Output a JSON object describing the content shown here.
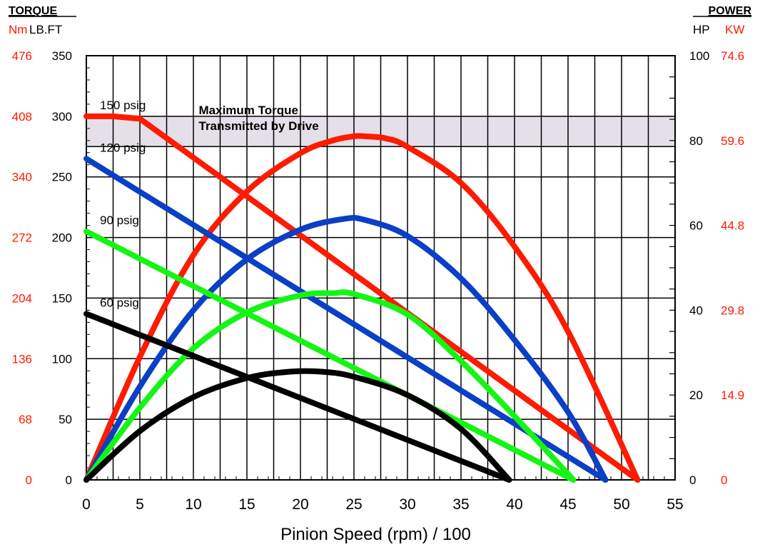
{
  "header": {
    "left_title": "TORQUE",
    "left_unit_metric": "Nm",
    "left_unit_imperial": "LB.FT",
    "right_title": "POWER",
    "right_unit_imperial": "HP",
    "right_unit_metric": "KW"
  },
  "colors": {
    "red": "#ff1a00",
    "blue": "#0a3fc6",
    "green": "#15f515",
    "black": "#000000",
    "band": "#e4dfe9",
    "axis_metric_text": "#ff1a00"
  },
  "chart_data": {
    "type": "line",
    "xlabel": "Pinion Speed (rpm) / 100",
    "xlim": [
      0,
      55
    ],
    "x_ticks": [
      0,
      5,
      10,
      15,
      20,
      25,
      30,
      35,
      40,
      45,
      50,
      55
    ],
    "x_tick_labels": [
      "0",
      "5",
      "10",
      "15",
      "20",
      "25",
      "30",
      "35",
      "40",
      "45",
      "50",
      "55"
    ],
    "torque_axis": {
      "lim": [
        0,
        350
      ],
      "ticks": [
        0,
        50,
        100,
        150,
        200,
        250,
        300,
        350
      ],
      "tick_labels": [
        "0",
        "50",
        "100",
        "150",
        "200",
        "250",
        "300",
        "350"
      ],
      "metric_tick_labels": [
        "0",
        "68",
        "136",
        "204",
        "272",
        "340",
        "408",
        "476"
      ]
    },
    "power_axis": {
      "lim": [
        0,
        100
      ],
      "ticks": [
        0,
        20,
        40,
        60,
        80,
        100
      ],
      "tick_labels": [
        "0",
        "20",
        "40",
        "60",
        "80",
        "100"
      ],
      "metric_tick_labels": [
        "0",
        "14.9",
        "29.8",
        "44.8",
        "59.6",
        "74.6"
      ]
    },
    "band": {
      "torque_range": [
        275,
        300
      ],
      "label_line1": "Maximum Torque",
      "label_line2": "Transmitted by Drive"
    },
    "series": [
      {
        "name": "150 psig",
        "color": "red",
        "torque": {
          "x": [
            0,
            2.5,
            5,
            51.5
          ],
          "y": [
            300,
            300,
            298,
            0
          ]
        },
        "power": {
          "x": [
            0,
            5,
            10,
            15,
            20,
            23,
            25,
            26,
            28,
            30,
            35,
            40,
            45,
            51.5
          ],
          "y": [
            0,
            29,
            53,
            68,
            77,
            80,
            81,
            81,
            80.5,
            78.5,
            70,
            55,
            35,
            0
          ]
        }
      },
      {
        "name": "120 psig",
        "color": "blue",
        "torque": {
          "x": [
            0,
            48.5
          ],
          "y": [
            265,
            0
          ]
        },
        "power": {
          "x": [
            0,
            5,
            10,
            15,
            20,
            24,
            26,
            30,
            35,
            40,
            45,
            48.5
          ],
          "y": [
            0,
            22,
            40,
            52,
            59,
            61.5,
            61.3,
            57.5,
            47.5,
            33,
            16,
            0
          ]
        }
      },
      {
        "name": "90 psig",
        "color": "green",
        "torque": {
          "x": [
            0,
            45.5
          ],
          "y": [
            205,
            0
          ]
        },
        "power": {
          "x": [
            0,
            5,
            10,
            15,
            20,
            23,
            25,
            30,
            35,
            40,
            45.5
          ],
          "y": [
            0,
            17,
            31,
            39.5,
            43.5,
            44,
            43.8,
            39,
            28,
            15,
            0
          ]
        }
      },
      {
        "name": "60 psig",
        "color": "black",
        "torque": {
          "x": [
            0,
            39.5
          ],
          "y": [
            137,
            0
          ]
        },
        "power": {
          "x": [
            0,
            5,
            10,
            15,
            19,
            22,
            25,
            30,
            35,
            39.5
          ],
          "y": [
            0,
            11.5,
            19.5,
            24,
            25.5,
            25.5,
            24.3,
            20,
            12,
            0
          ]
        }
      }
    ]
  }
}
